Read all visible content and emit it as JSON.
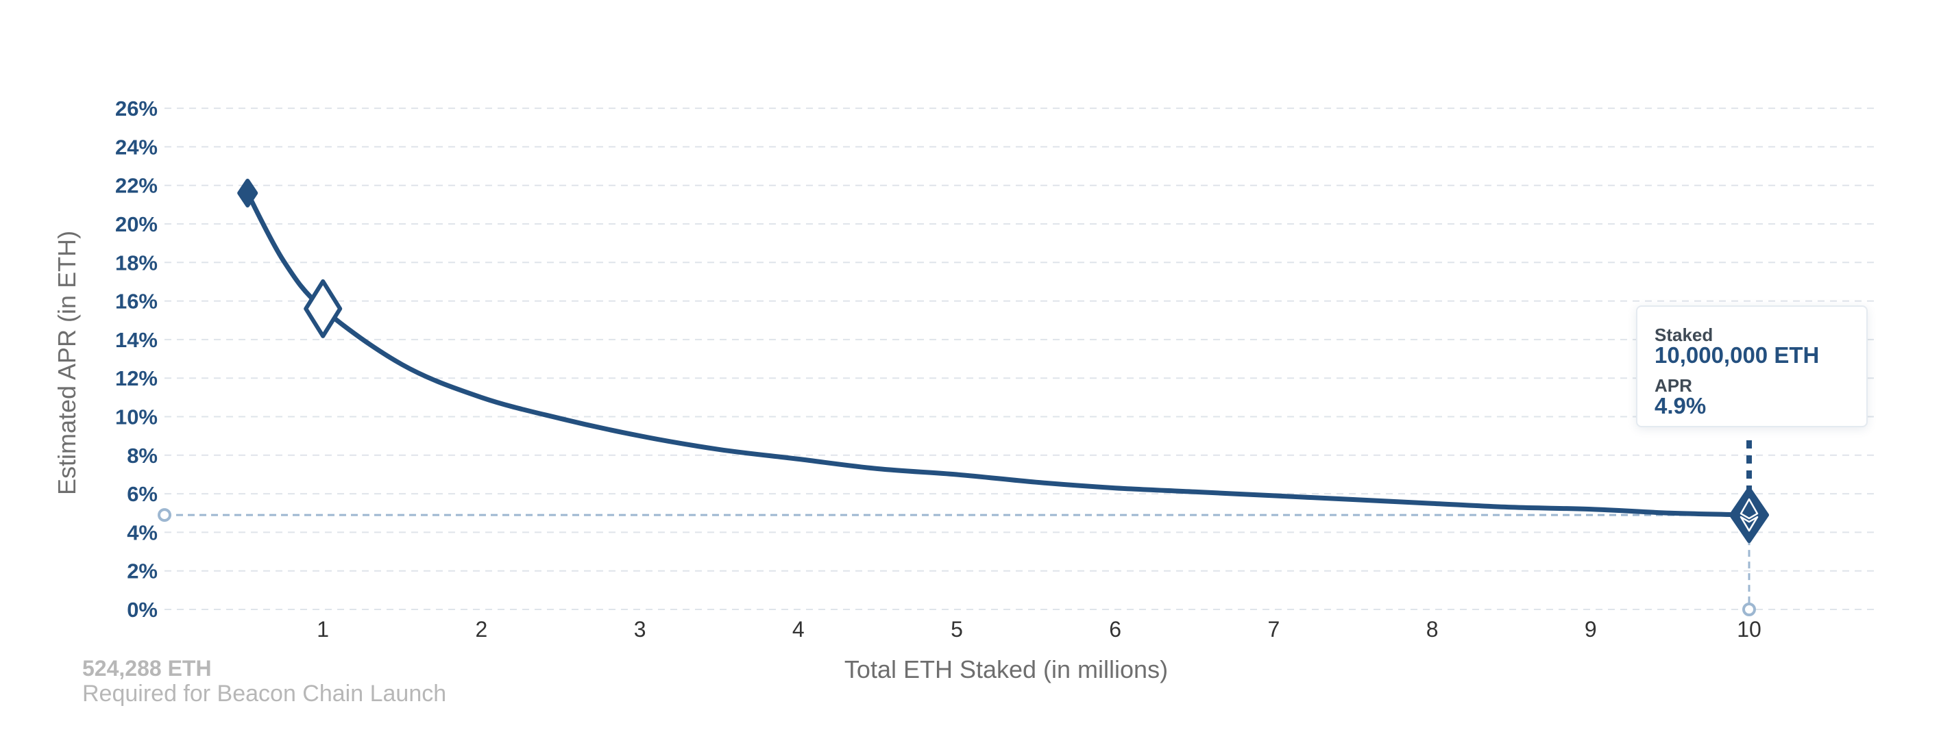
{
  "colors": {
    "primary": "#24507f",
    "reference_line": "#9db7d1",
    "grid": "#dfe4ea",
    "axis_title": "#6e6e6e",
    "x_tick": "#333333",
    "muted": "#b7b7b7"
  },
  "chart_data": {
    "type": "line",
    "xlabel": "Total ETH Staked  (in millions)",
    "ylabel": "Estimated APR (in ETH)",
    "xlim": [
      0,
      10.8
    ],
    "ylim": [
      0,
      26
    ],
    "x_ticks": [
      1,
      2,
      3,
      4,
      5,
      6,
      7,
      8,
      9,
      10
    ],
    "x_tick_labels": [
      "1",
      "2",
      "3",
      "4",
      "5",
      "6",
      "7",
      "8",
      "9",
      "10"
    ],
    "y_ticks": [
      0,
      2,
      4,
      6,
      8,
      10,
      12,
      14,
      16,
      18,
      20,
      22,
      24,
      26
    ],
    "y_tick_labels": [
      "0%",
      "2%",
      "4%",
      "6%",
      "8%",
      "10%",
      "12%",
      "14%",
      "16%",
      "18%",
      "20%",
      "22%",
      "24%",
      "26%"
    ],
    "grid": "horizontal dashed",
    "series": [
      {
        "x": [
          0.524288,
          0.75,
          1,
          1.5,
          2,
          2.5,
          3,
          3.5,
          4,
          4.5,
          5,
          5.5,
          6,
          6.5,
          7,
          7.5,
          8,
          8.5,
          9,
          9.5,
          10
        ],
        "values": [
          21.6,
          18.1,
          15.6,
          12.7,
          11.0,
          9.9,
          9.0,
          8.3,
          7.8,
          7.3,
          7.0,
          6.6,
          6.3,
          6.1,
          5.9,
          5.7,
          5.5,
          5.3,
          5.2,
          5.0,
          4.9
        ]
      }
    ],
    "markers": [
      {
        "name": "launch-point",
        "x": 0.524288,
        "y": 21.6
      },
      {
        "name": "one-million-point",
        "x": 1,
        "y": 15.6
      },
      {
        "name": "selected-point",
        "x": 10,
        "y": 4.9
      }
    ],
    "reference_y": 4.9,
    "reference_x": 10
  },
  "tooltip": {
    "staked_label": "Staked",
    "staked_value": "10,000,000 ETH",
    "apr_label": "APR",
    "apr_value": "4.9%"
  },
  "launch_note": {
    "amount": "524,288 ETH",
    "description": "Required for Beacon Chain Launch"
  }
}
